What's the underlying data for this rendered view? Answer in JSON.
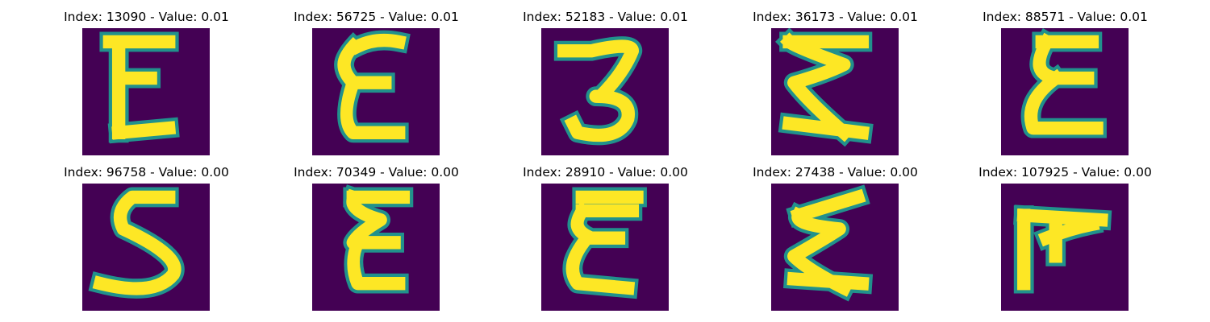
{
  "figure": {
    "panels": [
      {
        "index": "13090",
        "value": "0.01",
        "glyph": "E"
      },
      {
        "index": "56725",
        "value": "0.01",
        "glyph": "E"
      },
      {
        "index": "52183",
        "value": "0.01",
        "glyph": "3"
      },
      {
        "index": "36173",
        "value": "0.01",
        "glyph": "Z"
      },
      {
        "index": "88571",
        "value": "0.01",
        "glyph": "E"
      },
      {
        "index": "96758",
        "value": "0.00",
        "glyph": "5"
      },
      {
        "index": "70349",
        "value": "0.00",
        "glyph": "E"
      },
      {
        "index": "28910",
        "value": "0.00",
        "glyph": "E"
      },
      {
        "index": "27438",
        "value": "0.00",
        "glyph": "Z"
      },
      {
        "index": "107925",
        "value": "0.00",
        "glyph": "F"
      }
    ],
    "colors": {
      "background": "#440154",
      "stroke": "#fde725",
      "edge": "#21918c"
    }
  }
}
